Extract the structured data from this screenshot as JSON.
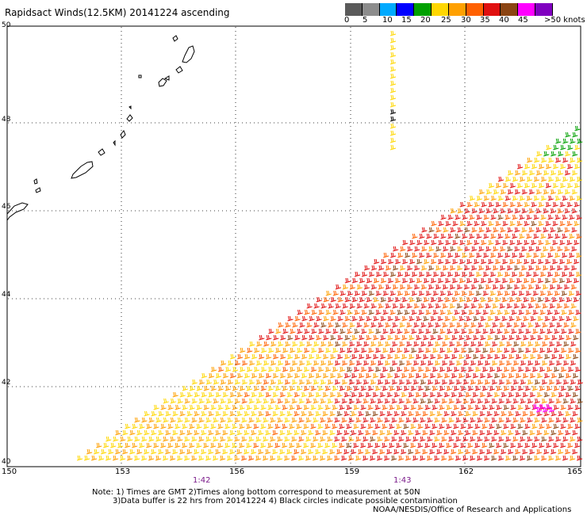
{
  "title": "Rapidsact Winds(12.5KM) 20141224 ascending",
  "legend": {
    "labels": [
      "0",
      "5",
      "10",
      "15",
      "20",
      "25",
      "30",
      "35",
      "40",
      "45",
      ">50 knots"
    ],
    "colors": [
      "#5a5a5a",
      "#8c8c8c",
      "#00aaff",
      "#0000ff",
      "#00a000",
      "#ffd700",
      "#ffa000",
      "#ff6000",
      "#e01010",
      "#8b4513",
      "#ff00ff",
      "#8000c0"
    ]
  },
  "axes": {
    "lon_ticks": [
      "150",
      "153",
      "156",
      "159",
      "162",
      "165"
    ],
    "lat_ticks": [
      "40",
      "42",
      "44",
      "46",
      "48",
      "50"
    ]
  },
  "times": [
    "1:42",
    "1:43"
  ],
  "notes": {
    "line1": "Note: 1) Times are GMT 2)Times along bottom correspond to measurement at 50N",
    "line2": "3)Data buffer is 22 hrs from 20141224 4) Black circles indicate possible contamination"
  },
  "credit": "NOAA/NESDIS/Office of Research and Applications"
}
